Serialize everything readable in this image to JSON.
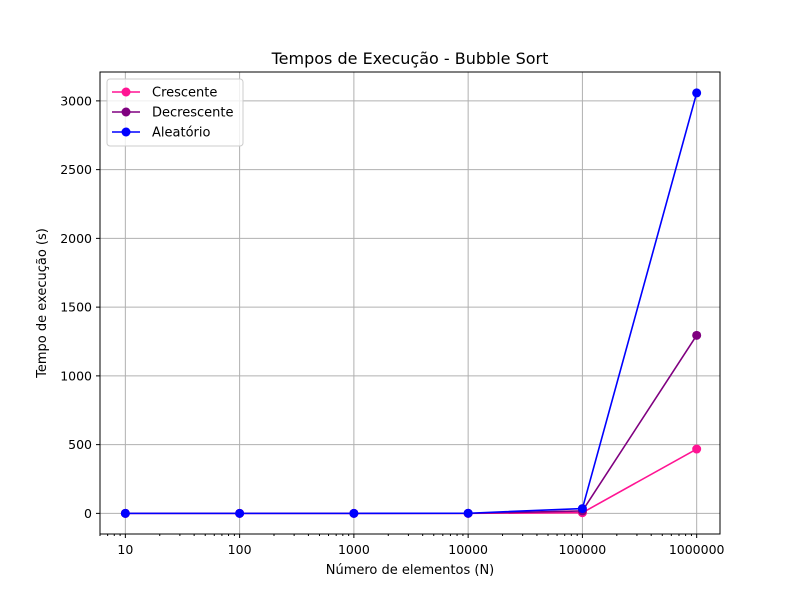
{
  "chart_data": {
    "type": "line",
    "title": "Tempos de Execução - Bubble Sort",
    "xlabel": "Número de elementos (N)",
    "ylabel": "Tempo de execução (s)",
    "x_scale": "log",
    "xlim": [
      6,
      1600000
    ],
    "ylim": [
      -150,
      3210
    ],
    "x": [
      10,
      100,
      1000,
      10000,
      100000,
      1000000
    ],
    "x_tick_labels": [
      "10",
      "100",
      "1000",
      "10000",
      "100000",
      "1000000"
    ],
    "y_ticks": [
      0,
      500,
      1000,
      1500,
      2000,
      2500,
      3000
    ],
    "y_tick_labels": [
      "0",
      "500",
      "1000",
      "1500",
      "2000",
      "2500",
      "3000"
    ],
    "grid": true,
    "legend_position": "top-left",
    "series": [
      {
        "name": "Crescente",
        "color": "#ff1493",
        "values": [
          0,
          0,
          0,
          0,
          5,
          468
        ]
      },
      {
        "name": "Decrescente",
        "color": "#800080",
        "values": [
          0,
          0,
          0,
          0,
          18,
          1295
        ]
      },
      {
        "name": "Aleatório",
        "color": "#0000ff",
        "values": [
          0,
          0,
          0,
          1,
          35,
          3058
        ]
      }
    ]
  }
}
